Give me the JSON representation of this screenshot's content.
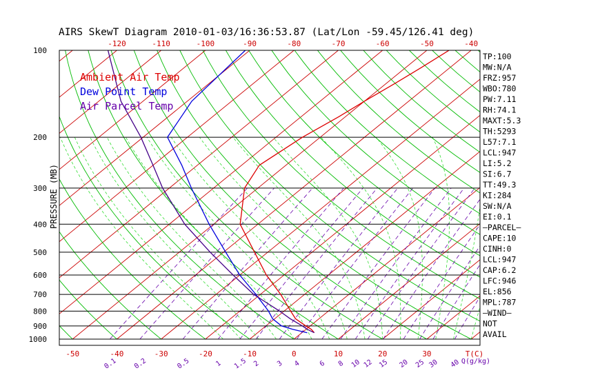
{
  "colors": {
    "background": "#ffffff",
    "isobar": "#000000",
    "isotherm": "#cc0000",
    "dry_adiabat": "#00bb00",
    "moist_adiabat": "#33dd33",
    "mixing_ratio": "#6600aa",
    "ambient_temp": "#dd0000",
    "dew_point": "#0000dd",
    "parcel": "#440088",
    "text": "#000000",
    "legend_ambient": "#dd0000",
    "legend_dew": "#0000dd",
    "legend_parcel": "#6600aa"
  },
  "chart_data": {
    "type": "line",
    "title": "AIRS SkewT Diagram 2010-01-03/16:36:53.87 (Lat/Lon -59.45/126.41 deg)",
    "ylabel": "PRESSURE (MB)",
    "xlabel": "T(C)",
    "y_scale": "log",
    "ylim": [
      1000,
      100
    ],
    "xlim_at_1000mb": [
      -53,
      42
    ],
    "skew_degC_per_log10p": -80,
    "pressure_ticks": [
      100,
      200,
      300,
      400,
      500,
      600,
      700,
      800,
      900,
      1000
    ],
    "pressure_tick_labels": [
      "100",
      "200",
      "300",
      "400",
      "500",
      "600",
      "700",
      "800",
      "900",
      "1000"
    ],
    "temp_bottom_ticks": [
      -50,
      -40,
      -30,
      -20,
      -10,
      0,
      10,
      20,
      30
    ],
    "temp_bottom_labels": [
      "-50",
      "-40",
      "-30",
      "-20",
      "-10",
      "0",
      "10",
      "20",
      "30"
    ],
    "temp_top_ticks": [
      -120,
      -110,
      -100,
      -90,
      -80,
      -70,
      -60,
      -50,
      -40
    ],
    "temp_top_labels": [
      "-120",
      "-110",
      "-100",
      "-90",
      "-80",
      "-70",
      "-60",
      "-50",
      "-40"
    ],
    "mixing_ratio_values": [
      0.1,
      0.2,
      0.5,
      1,
      1.5,
      2,
      3,
      4,
      6,
      8,
      10,
      12,
      15,
      20,
      25,
      30,
      40
    ],
    "mixing_ratio_labels": [
      "0.1",
      "0.2",
      "0.5",
      "1",
      "1.5",
      "2",
      "3",
      "4",
      "6",
      "8",
      "10",
      "12",
      "15",
      "20",
      "25",
      "30",
      "40"
    ],
    "mixing_ratio_unit": "Q(g/kg)",
    "series": [
      {
        "name": "Ambient Air Temp",
        "pressure": [
          950,
          925,
          900,
          850,
          800,
          700,
          600,
          500,
          400,
          300,
          250,
          200,
          170,
          150,
          130,
          115,
          100
        ],
        "temp": [
          2.8,
          1.2,
          -1.0,
          -5.3,
          -8.5,
          -15.4,
          -24,
          -33,
          -44,
          -53,
          -56,
          -54,
          -51.5,
          -50,
          -48,
          -46.5,
          -45
        ]
      },
      {
        "name": "Dew Point Temp",
        "pressure": [
          950,
          925,
          900,
          850,
          800,
          700,
          600,
          500,
          400,
          300,
          250,
          200,
          150,
          100
        ],
        "temp": [
          1.2,
          -3.0,
          -6.5,
          -10.5,
          -13.5,
          -21,
          -30,
          -39.5,
          -51,
          -65,
          -73.5,
          -84.5,
          -89,
          -91
        ]
      },
      {
        "name": "Air Parcel Temp",
        "pressure": [
          950,
          925,
          900,
          850,
          800,
          700,
          600,
          500,
          400,
          300,
          250,
          200,
          150,
          100
        ],
        "temp": [
          2.8,
          0.3,
          -1.8,
          -6.5,
          -11.0,
          -21.5,
          -31.5,
          -43,
          -56.5,
          -71.5,
          -80,
          -90.5,
          -105,
          -122
        ]
      }
    ],
    "legend": [
      "Ambient Air Temp",
      "Dew Point Temp",
      "Air Parcel Temp"
    ],
    "legend_position": "top-left",
    "indices": [
      "TP:100",
      "MW:N/A",
      "FRZ:957",
      "WBO:780",
      "PW:7.11",
      "RH:74.1",
      "MAXT:5.3",
      "TH:5293",
      "L57:7.1",
      "LCL:947",
      "LI:5.2",
      "SI:6.7",
      "TT:49.3",
      "KI:284",
      "SW:N/A",
      "EI:0.1",
      "—PARCEL—",
      "CAPE:10",
      "CINH:0",
      "LCL:947",
      "CAP:6.2",
      "LFC:946",
      "EL:856",
      "MPL:787",
      "—WIND—",
      "NOT",
      "AVAIL"
    ],
    "grid": true
  }
}
